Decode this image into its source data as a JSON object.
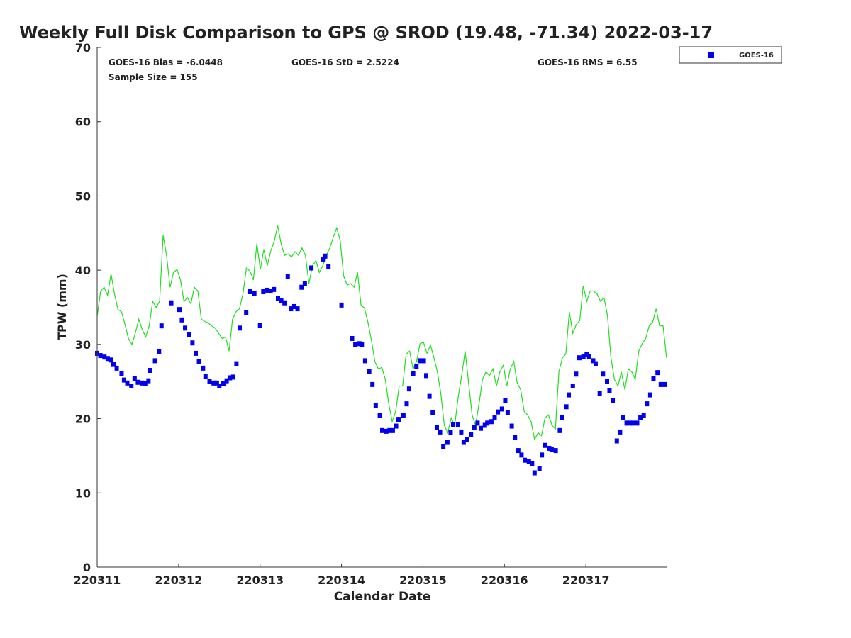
{
  "chart_data": {
    "type": "scatter",
    "title": "Weekly Full Disk Comparison to GPS @ SROD (19.48, -71.34) 2022-03-17",
    "xlabel": "Calendar Date",
    "ylabel": "TPW (mm)",
    "ylim": [
      0,
      70
    ],
    "xlim_days": [
      0,
      7
    ],
    "x_unit": "days since 220311",
    "yticks": [
      "0",
      "10",
      "20",
      "30",
      "40",
      "50",
      "60",
      "70"
    ],
    "xticks": [
      "220311",
      "220312",
      "220313",
      "220314",
      "220315",
      "220316",
      "220317"
    ],
    "stats": {
      "bias": "GOES-16 Bias = -6.0448",
      "std": "GOES-16 StD = 2.5224",
      "rms": "GOES-16 RMS = 6.55",
      "sample": "Sample Size = 155"
    },
    "legend": {
      "label": "GOES-16",
      "placement": "top-right"
    },
    "colors": {
      "goes": "#0000ee",
      "gps": "#22dd22"
    },
    "series": [
      {
        "name": "GOES-16",
        "points": [
          [
            0.0,
            28.8
          ],
          [
            0.04,
            28.5
          ],
          [
            0.09,
            28.3
          ],
          [
            0.13,
            28.1
          ],
          [
            0.17,
            27.9
          ],
          [
            0.2,
            27.3
          ],
          [
            0.24,
            26.8
          ],
          [
            0.3,
            26.1
          ],
          [
            0.33,
            25.2
          ],
          [
            0.37,
            24.8
          ],
          [
            0.42,
            24.4
          ],
          [
            0.46,
            25.4
          ],
          [
            0.5,
            24.9
          ],
          [
            0.55,
            24.8
          ],
          [
            0.59,
            24.7
          ],
          [
            0.63,
            25.1
          ],
          [
            0.65,
            26.5
          ],
          [
            0.71,
            27.8
          ],
          [
            0.76,
            29.0
          ],
          [
            0.79,
            32.5
          ],
          [
            0.91,
            35.6
          ],
          [
            1.01,
            34.7
          ],
          [
            1.04,
            33.3
          ],
          [
            1.08,
            32.2
          ],
          [
            1.13,
            31.3
          ],
          [
            1.17,
            30.2
          ],
          [
            1.21,
            28.8
          ],
          [
            1.25,
            27.7
          ],
          [
            1.3,
            26.8
          ],
          [
            1.33,
            25.7
          ],
          [
            1.38,
            25.0
          ],
          [
            1.43,
            24.8
          ],
          [
            1.47,
            24.8
          ],
          [
            1.5,
            24.4
          ],
          [
            1.55,
            24.7
          ],
          [
            1.59,
            25.1
          ],
          [
            1.63,
            25.5
          ],
          [
            1.67,
            25.6
          ],
          [
            1.71,
            27.4
          ],
          [
            1.75,
            32.2
          ],
          [
            1.83,
            34.3
          ],
          [
            1.88,
            37.1
          ],
          [
            1.93,
            36.9
          ],
          [
            2.0,
            32.6
          ],
          [
            2.04,
            37.1
          ],
          [
            2.09,
            37.3
          ],
          [
            2.13,
            37.2
          ],
          [
            2.17,
            37.4
          ],
          [
            2.22,
            36.2
          ],
          [
            2.26,
            35.9
          ],
          [
            2.3,
            35.6
          ],
          [
            2.34,
            39.2
          ],
          [
            2.38,
            34.8
          ],
          [
            2.42,
            35.1
          ],
          [
            2.46,
            34.8
          ],
          [
            2.51,
            37.7
          ],
          [
            2.55,
            38.2
          ],
          [
            2.63,
            40.3
          ],
          [
            2.77,
            41.5
          ],
          [
            2.8,
            41.9
          ],
          [
            2.84,
            40.5
          ],
          [
            3.0,
            35.3
          ],
          [
            3.13,
            30.8
          ],
          [
            3.17,
            30.0
          ],
          [
            3.22,
            30.1
          ],
          [
            3.25,
            30.0
          ],
          [
            3.29,
            27.8
          ],
          [
            3.34,
            26.4
          ],
          [
            3.38,
            24.6
          ],
          [
            3.42,
            21.8
          ],
          [
            3.47,
            20.4
          ],
          [
            3.5,
            18.4
          ],
          [
            3.55,
            18.3
          ],
          [
            3.59,
            18.4
          ],
          [
            3.63,
            18.4
          ],
          [
            3.67,
            19.0
          ],
          [
            3.7,
            19.9
          ],
          [
            3.76,
            20.4
          ],
          [
            3.8,
            22.0
          ],
          [
            3.83,
            24.0
          ],
          [
            3.88,
            26.1
          ],
          [
            3.92,
            27.0
          ],
          [
            3.96,
            27.8
          ],
          [
            4.01,
            27.8
          ],
          [
            4.04,
            25.8
          ],
          [
            4.08,
            23.0
          ],
          [
            4.12,
            20.8
          ],
          [
            4.17,
            18.8
          ],
          [
            4.21,
            18.2
          ],
          [
            4.25,
            16.2
          ],
          [
            4.3,
            16.8
          ],
          [
            4.34,
            18.1
          ],
          [
            4.37,
            19.2
          ],
          [
            4.43,
            19.2
          ],
          [
            4.47,
            18.2
          ],
          [
            4.5,
            16.8
          ],
          [
            4.54,
            17.2
          ],
          [
            4.59,
            17.9
          ],
          [
            4.63,
            18.8
          ],
          [
            4.67,
            19.4
          ],
          [
            4.71,
            18.7
          ],
          [
            4.76,
            19.1
          ],
          [
            4.79,
            19.4
          ],
          [
            4.84,
            19.6
          ],
          [
            4.88,
            20.1
          ],
          [
            4.92,
            20.9
          ],
          [
            4.97,
            21.3
          ],
          [
            5.01,
            22.4
          ],
          [
            5.04,
            20.8
          ],
          [
            5.09,
            19.0
          ],
          [
            5.13,
            17.5
          ],
          [
            5.17,
            15.7
          ],
          [
            5.21,
            15.1
          ],
          [
            5.25,
            14.4
          ],
          [
            5.3,
            14.2
          ],
          [
            5.34,
            13.9
          ],
          [
            5.37,
            12.7
          ],
          [
            5.43,
            13.3
          ],
          [
            5.46,
            15.1
          ],
          [
            5.5,
            16.4
          ],
          [
            5.55,
            16.0
          ],
          [
            5.58,
            15.9
          ],
          [
            5.63,
            15.7
          ],
          [
            5.68,
            18.4
          ],
          [
            5.71,
            20.2
          ],
          [
            5.76,
            21.6
          ],
          [
            5.79,
            23.2
          ],
          [
            5.84,
            24.4
          ],
          [
            5.88,
            26.0
          ],
          [
            5.92,
            28.2
          ],
          [
            5.97,
            28.4
          ],
          [
            6.01,
            28.7
          ],
          [
            6.04,
            28.4
          ],
          [
            6.09,
            27.8
          ],
          [
            6.12,
            27.4
          ],
          [
            6.17,
            23.4
          ],
          [
            6.21,
            26.0
          ],
          [
            6.26,
            25.0
          ],
          [
            6.29,
            23.8
          ],
          [
            6.33,
            22.4
          ],
          [
            6.38,
            17.0
          ],
          [
            6.42,
            18.2
          ],
          [
            6.46,
            20.1
          ],
          [
            6.5,
            19.4
          ],
          [
            6.54,
            19.4
          ],
          [
            6.58,
            19.4
          ],
          [
            6.63,
            19.4
          ],
          [
            6.67,
            20.1
          ],
          [
            6.71,
            20.4
          ],
          [
            6.75,
            22.0
          ],
          [
            6.79,
            23.2
          ],
          [
            6.83,
            25.4
          ],
          [
            6.88,
            26.2
          ],
          [
            6.92,
            24.6
          ],
          [
            6.97,
            24.6
          ]
        ]
      },
      {
        "name": "GPS",
        "x_range": [
          0,
          6.99
        ],
        "values": [
          33.8,
          37.2,
          37.7,
          36.6,
          39.5,
          36.8,
          34.7,
          34.4,
          32.7,
          30.8,
          30.0,
          31.5,
          33.4,
          32.0,
          31.0,
          32.5,
          35.8,
          35.0,
          35.8,
          44.7,
          42.0,
          37.7,
          39.7,
          40.1,
          38.7,
          35.8,
          36.3,
          35.5,
          37.7,
          37.2,
          33.4,
          33.1,
          32.9,
          32.5,
          32.2,
          31.5,
          30.8,
          31.0,
          29.1,
          33.4,
          34.4,
          34.8,
          36.8,
          40.3,
          39.9,
          38.7,
          43.6,
          40.1,
          42.8,
          40.6,
          42.6,
          43.9,
          46.0,
          43.5,
          42.0,
          42.2,
          41.8,
          42.5,
          42.0,
          43.0,
          42.0,
          38.2,
          40.6,
          41.3,
          39.7,
          40.6,
          42.0,
          43.0,
          44.4,
          45.7,
          44.0,
          39.2,
          38.0,
          38.2,
          37.7,
          39.7,
          35.3,
          34.9,
          33.0,
          30.6,
          27.7,
          26.7,
          26.9,
          25.3,
          22.0,
          19.6,
          21.0,
          24.4,
          24.4,
          28.7,
          29.1,
          26.7,
          27.7,
          30.1,
          30.3,
          28.8,
          29.9,
          28.2,
          26.3,
          23.4,
          19.1,
          18.1,
          20.1,
          19.1,
          22.9,
          25.8,
          29.1,
          24.8,
          20.5,
          19.1,
          22.0,
          25.3,
          26.3,
          25.8,
          26.7,
          24.4,
          26.3,
          27.2,
          24.4,
          26.7,
          27.7,
          24.8,
          23.9,
          21.0,
          20.5,
          19.6,
          17.2,
          18.1,
          17.7,
          20.1,
          20.5,
          19.1,
          18.6,
          26.3,
          28.2,
          28.7,
          34.4,
          31.5,
          32.7,
          33.2,
          37.9,
          35.8,
          37.2,
          37.2,
          36.8,
          35.8,
          36.3,
          33.9,
          28.2,
          25.3,
          24.4,
          26.3,
          23.9,
          26.7,
          26.3,
          25.3,
          29.1,
          30.1,
          30.8,
          32.5,
          33.0,
          34.8,
          32.5,
          32.5,
          28.2
        ]
      }
    ]
  }
}
